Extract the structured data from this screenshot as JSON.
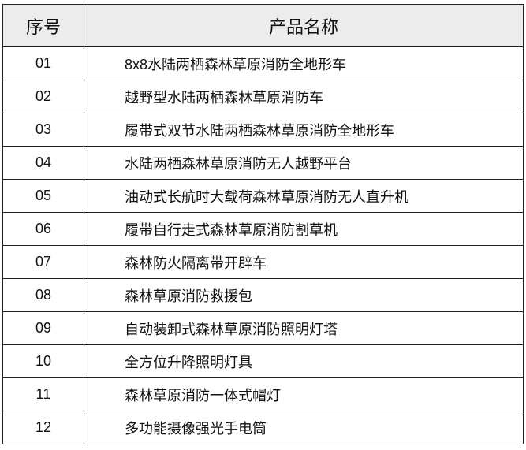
{
  "table": {
    "headers": [
      "序号",
      "产品名称"
    ],
    "rows": [
      {
        "no": "01",
        "name": "8x8水陆两栖森林草原消防全地形车"
      },
      {
        "no": "02",
        "name": "越野型水陆两栖森林草原消防车"
      },
      {
        "no": "03",
        "name": "履带式双节水陆两栖森林草原消防全地形车"
      },
      {
        "no": "04",
        "name": "水陆两栖森林草原消防无人越野平台"
      },
      {
        "no": "05",
        "name": "油动式长航时大载荷森林草原消防无人直升机"
      },
      {
        "no": "06",
        "name": "履带自行走式森林草原消防割草机"
      },
      {
        "no": "07",
        "name": "森林防火隔离带开辟车"
      },
      {
        "no": "08",
        "name": "森林草原消防救援包"
      },
      {
        "no": "09",
        "name": "自动装卸式森林草原消防照明灯塔"
      },
      {
        "no": "10",
        "name": "全方位升降照明灯具"
      },
      {
        "no": "11",
        "name": "森林草原消防一体式帽灯"
      },
      {
        "no": "12",
        "name": "多功能摄像强光手电筒"
      }
    ],
    "header_bg": "#ececec"
  }
}
